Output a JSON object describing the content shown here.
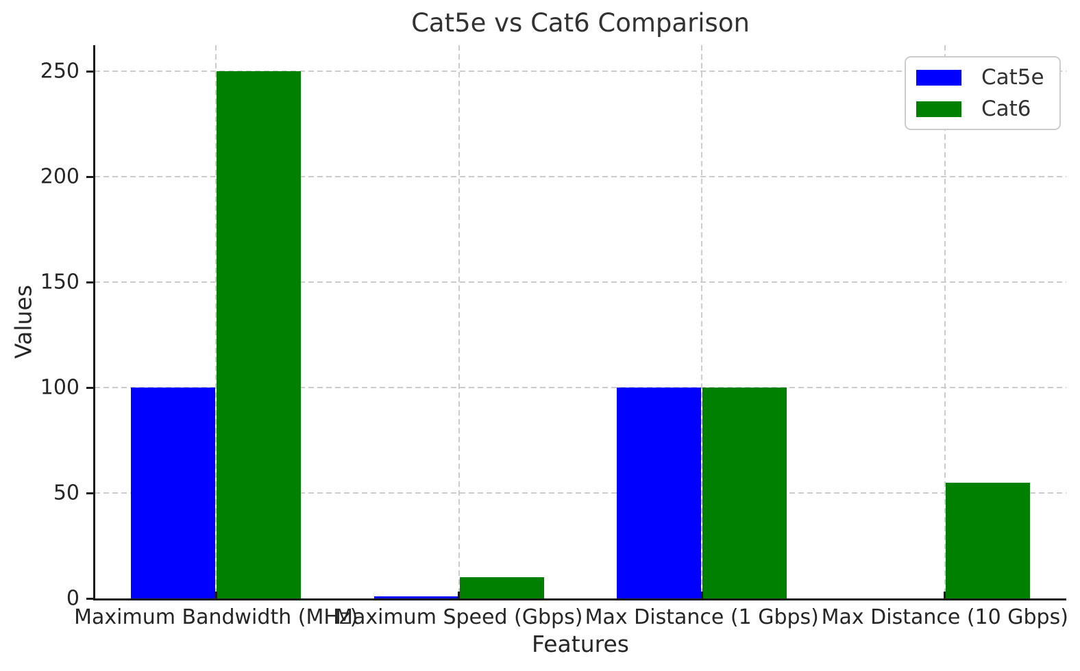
{
  "chart_data": {
    "type": "bar",
    "title": "Cat5e vs Cat6 Comparison",
    "xlabel": "Features",
    "ylabel": "Values",
    "categories": [
      "Maximum Bandwidth (MHz)",
      "Maximum Speed (Gbps)",
      "Max Distance (1 Gbps)",
      "Max Distance (10 Gbps)"
    ],
    "series": [
      {
        "name": "Cat5e",
        "color": "#0000ff",
        "values": [
          100,
          1,
          100,
          0
        ]
      },
      {
        "name": "Cat6",
        "color": "#008000",
        "values": [
          250,
          10,
          100,
          55
        ]
      }
    ],
    "yticks": [
      0,
      50,
      100,
      150,
      200,
      250
    ],
    "ylim": [
      0,
      262.5
    ],
    "grid": "dashed-both",
    "legend_position": "upper-right",
    "colors": {
      "grid": "#cccccc",
      "spine": "#1a1a1a",
      "text": "#262626"
    }
  }
}
